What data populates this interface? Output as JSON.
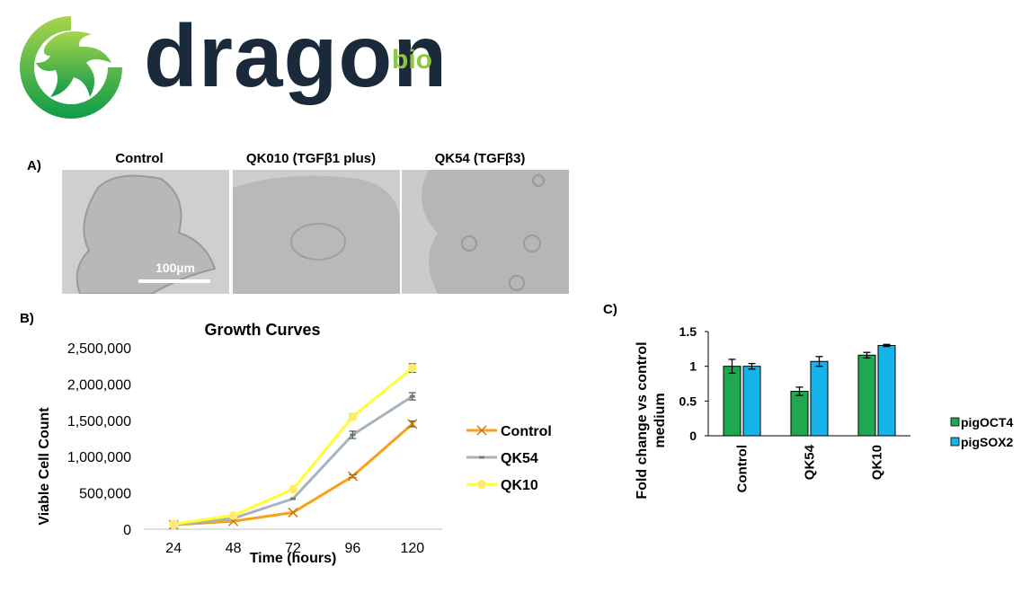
{
  "logo": {
    "word": "dragon",
    "suffix": "bio",
    "colors": {
      "word": "#1b2a3a",
      "green_light": "#8dc63f",
      "green_dark": "#0f9b4a"
    }
  },
  "panel_a": {
    "letter": "A)",
    "images": [
      {
        "title": "Control"
      },
      {
        "title": "QK010 (TGFβ1 plus)"
      },
      {
        "title": "QK54 (TGFβ3)"
      }
    ],
    "scale_bar": "100µm"
  },
  "panel_b": {
    "letter": "B)",
    "chart_data": {
      "type": "line",
      "title": "Growth Curves",
      "xlabel": "Time (hours)",
      "ylabel": "Viable Cell Count",
      "x": [
        24,
        48,
        72,
        96,
        120
      ],
      "ylim": [
        0,
        2500000
      ],
      "yticks": [
        "0",
        "500,000",
        "1,000,000",
        "1,500,000",
        "2,000,000",
        "2,500,000"
      ],
      "ytick_values": [
        0,
        500000,
        1000000,
        1500000,
        2000000,
        2500000
      ],
      "legend": "right",
      "series": [
        {
          "name": "Control",
          "values": [
            60000,
            110000,
            230000,
            730000,
            1450000
          ],
          "errors": [
            0,
            0,
            0,
            20000,
            40000
          ],
          "color": "#f7a11a",
          "marker": "x"
        },
        {
          "name": "QK54",
          "values": [
            60000,
            150000,
            420000,
            1300000,
            1830000
          ],
          "errors": [
            0,
            0,
            0,
            50000,
            50000
          ],
          "color": "#a6b4bd",
          "marker": "dash"
        },
        {
          "name": "QK10",
          "values": [
            70000,
            190000,
            550000,
            1550000,
            2220000
          ],
          "errors": [
            0,
            0,
            0,
            40000,
            60000
          ],
          "color": "#ffff33",
          "marker": "circle"
        }
      ]
    }
  },
  "panel_c": {
    "letter": "C)",
    "chart_data": {
      "type": "bar",
      "ylabel": "Fold change vs control medium",
      "categories": [
        "Control",
        "QK54",
        "QK10"
      ],
      "ylim": [
        0,
        1.5
      ],
      "yticks": [
        "0",
        "0.5",
        "1",
        "1.5"
      ],
      "ytick_values": [
        0,
        0.5,
        1,
        1.5
      ],
      "legend": "right",
      "series": [
        {
          "name": "pigOCT4",
          "values": [
            1.0,
            0.64,
            1.16
          ],
          "errors": [
            0.1,
            0.06,
            0.04
          ],
          "color": "#1fa84f"
        },
        {
          "name": "pigSOX2",
          "values": [
            1.0,
            1.07,
            1.3
          ],
          "errors": [
            0.04,
            0.07,
            0.015
          ],
          "color": "#16b2ea"
        }
      ]
    }
  }
}
